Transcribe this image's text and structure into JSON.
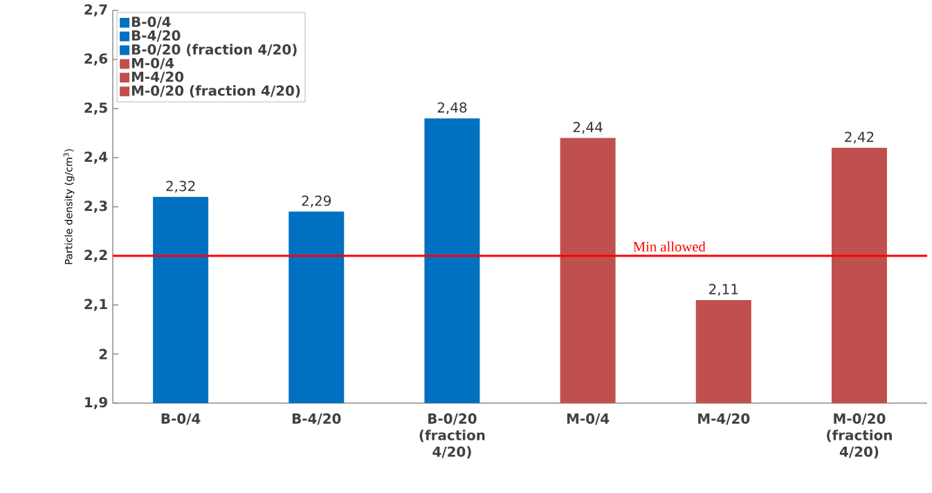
{
  "chart_data": {
    "type": "bar",
    "ylabel": "Particle density (g/cm$^{3}$)",
    "categories": [
      "B-0/4",
      "B-4/20",
      "B-0/20 (fraction 4/20)",
      "M-0/4",
      "M-4/20",
      "M-0/20 (fraction 4/20)"
    ],
    "series": [
      {
        "name": "B-0/4",
        "color": "#0070c0",
        "values": [
          2.32,
          null,
          null,
          null,
          null,
          null
        ],
        "value_labels": [
          "2,32",
          null,
          null,
          null,
          null,
          null
        ]
      },
      {
        "name": "B-4/20",
        "color": "#0070c0",
        "values": [
          null,
          2.29,
          null,
          null,
          null,
          null
        ],
        "value_labels": [
          null,
          "2,29",
          null,
          null,
          null,
          null
        ]
      },
      {
        "name": "B-0/20 (fraction 4/20)",
        "color": "#0070c0",
        "values": [
          null,
          null,
          2.48,
          null,
          null,
          null
        ],
        "value_labels": [
          null,
          null,
          "2,48",
          null,
          null,
          null
        ]
      },
      {
        "name": "M-0/4",
        "color": "#c0504d",
        "values": [
          null,
          null,
          null,
          2.44,
          null,
          null
        ],
        "value_labels": [
          null,
          null,
          null,
          "2,44",
          null,
          null
        ]
      },
      {
        "name": "M-4/20",
        "color": "#c0504d",
        "values": [
          null,
          null,
          null,
          null,
          2.11,
          null
        ],
        "value_labels": [
          null,
          null,
          null,
          null,
          "2,11",
          null
        ]
      },
      {
        "name": "M-0/20 (fraction 4/20)",
        "color": "#c0504d",
        "values": [
          null,
          null,
          null,
          null,
          null,
          2.42
        ],
        "value_labels": [
          null,
          null,
          null,
          null,
          null,
          "2,42"
        ]
      }
    ],
    "ylim": [
      1.9,
      2.7
    ],
    "yticks": [
      {
        "value": 1.9,
        "label": "1,9"
      },
      {
        "value": 2,
        "label": "2"
      },
      {
        "value": 2.1,
        "label": "2,1"
      },
      {
        "value": 2.2,
        "label": "2,2"
      },
      {
        "value": 2.3,
        "label": "2,3"
      },
      {
        "value": 2.4,
        "label": "2,4"
      },
      {
        "value": 2.5,
        "label": "2,5"
      },
      {
        "value": 2.6,
        "label": "2,6"
      },
      {
        "value": 2.7,
        "label": "2,7"
      }
    ],
    "ref_lines": [
      {
        "axis": "y",
        "value": 2.2,
        "label": "Min allowed",
        "color": "#ff0000"
      }
    ],
    "grid": false,
    "legend": "top left"
  }
}
